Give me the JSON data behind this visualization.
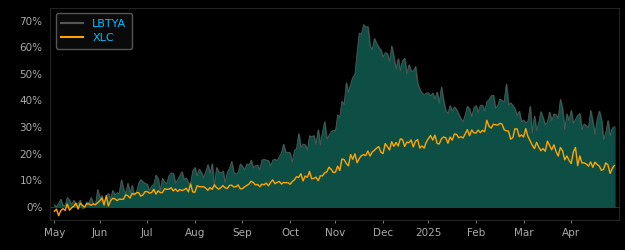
{
  "background_color": "#000000",
  "plot_bg_color": "#000000",
  "fill_color": "#0d4f45",
  "xlc_color": "#FFA500",
  "lbtya_line_color": "#555555",
  "legend_text_color": "#00BFFF",
  "tick_label_color": "#aaaaaa",
  "ylim": [
    -0.05,
    0.75
  ],
  "yticks": [
    0.0,
    0.1,
    0.2,
    0.3,
    0.4,
    0.5,
    0.6,
    0.7
  ],
  "ytick_labels": [
    "0%",
    "10%",
    "20%",
    "30%",
    "40%",
    "50%",
    "60%",
    "70%"
  ],
  "x_labels": [
    "May",
    "Jun",
    "Jul",
    "Aug",
    "Sep",
    "Oct",
    "Nov",
    "Dec",
    "2025",
    "Feb",
    "Mar",
    "Apr"
  ],
  "n_points": 260
}
